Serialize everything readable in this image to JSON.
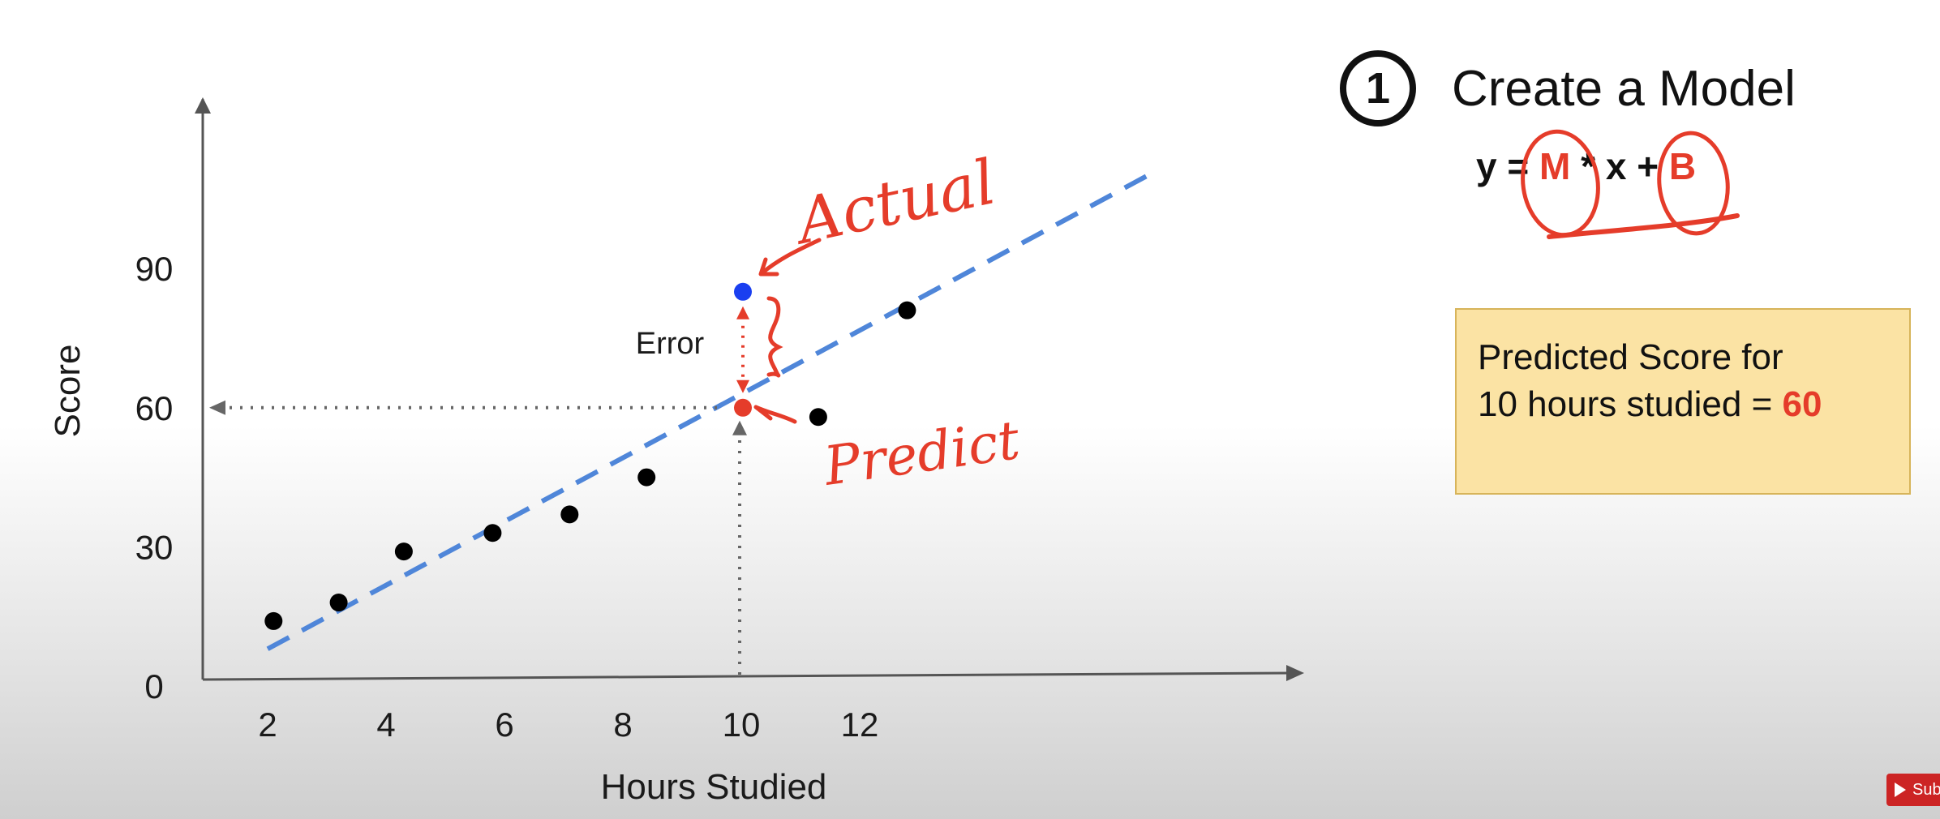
{
  "chart_data": {
    "type": "scatter",
    "xlabel": "Hours Studied",
    "ylabel": "Score",
    "x_ticks": [
      2,
      4,
      6,
      8,
      10,
      12
    ],
    "y_ticks": [
      0,
      30,
      60,
      90
    ],
    "points": [
      {
        "x": 2.1,
        "y": 14
      },
      {
        "x": 3.2,
        "y": 18
      },
      {
        "x": 4.3,
        "y": 29
      },
      {
        "x": 5.8,
        "y": 33
      },
      {
        "x": 7.1,
        "y": 37
      },
      {
        "x": 8.4,
        "y": 45
      },
      {
        "x": 11.3,
        "y": 58
      },
      {
        "x": 12.8,
        "y": 81
      }
    ],
    "actual_point": {
      "x": 10,
      "y": 85
    },
    "predicted_point": {
      "x": 10,
      "y": 60
    },
    "regression_line": {
      "x_start": 2,
      "y_start": 8,
      "x_end": 17,
      "y_end": 111
    },
    "annotations": {
      "error": "Error",
      "actual": "Actual",
      "predict": "Predict"
    },
    "colors": {
      "points": "#000000",
      "actual": "#1a3ff0",
      "predicted": "#e53c2a",
      "line": "#4f86d9",
      "handwriting": "#e53c2a"
    }
  },
  "panel": {
    "step_number": "1",
    "step_title": "Create a Model",
    "formula": {
      "y": "y",
      "equals": "=",
      "m": "M",
      "times": "*",
      "x": "x",
      "plus": "+",
      "b": "B"
    },
    "prediction": {
      "line1": "Predicted Score for",
      "line2": "10 hours studied =",
      "value": "60"
    }
  },
  "player": {
    "subscribe_label": "Subs",
    "subscribe_icon": "play-icon"
  }
}
